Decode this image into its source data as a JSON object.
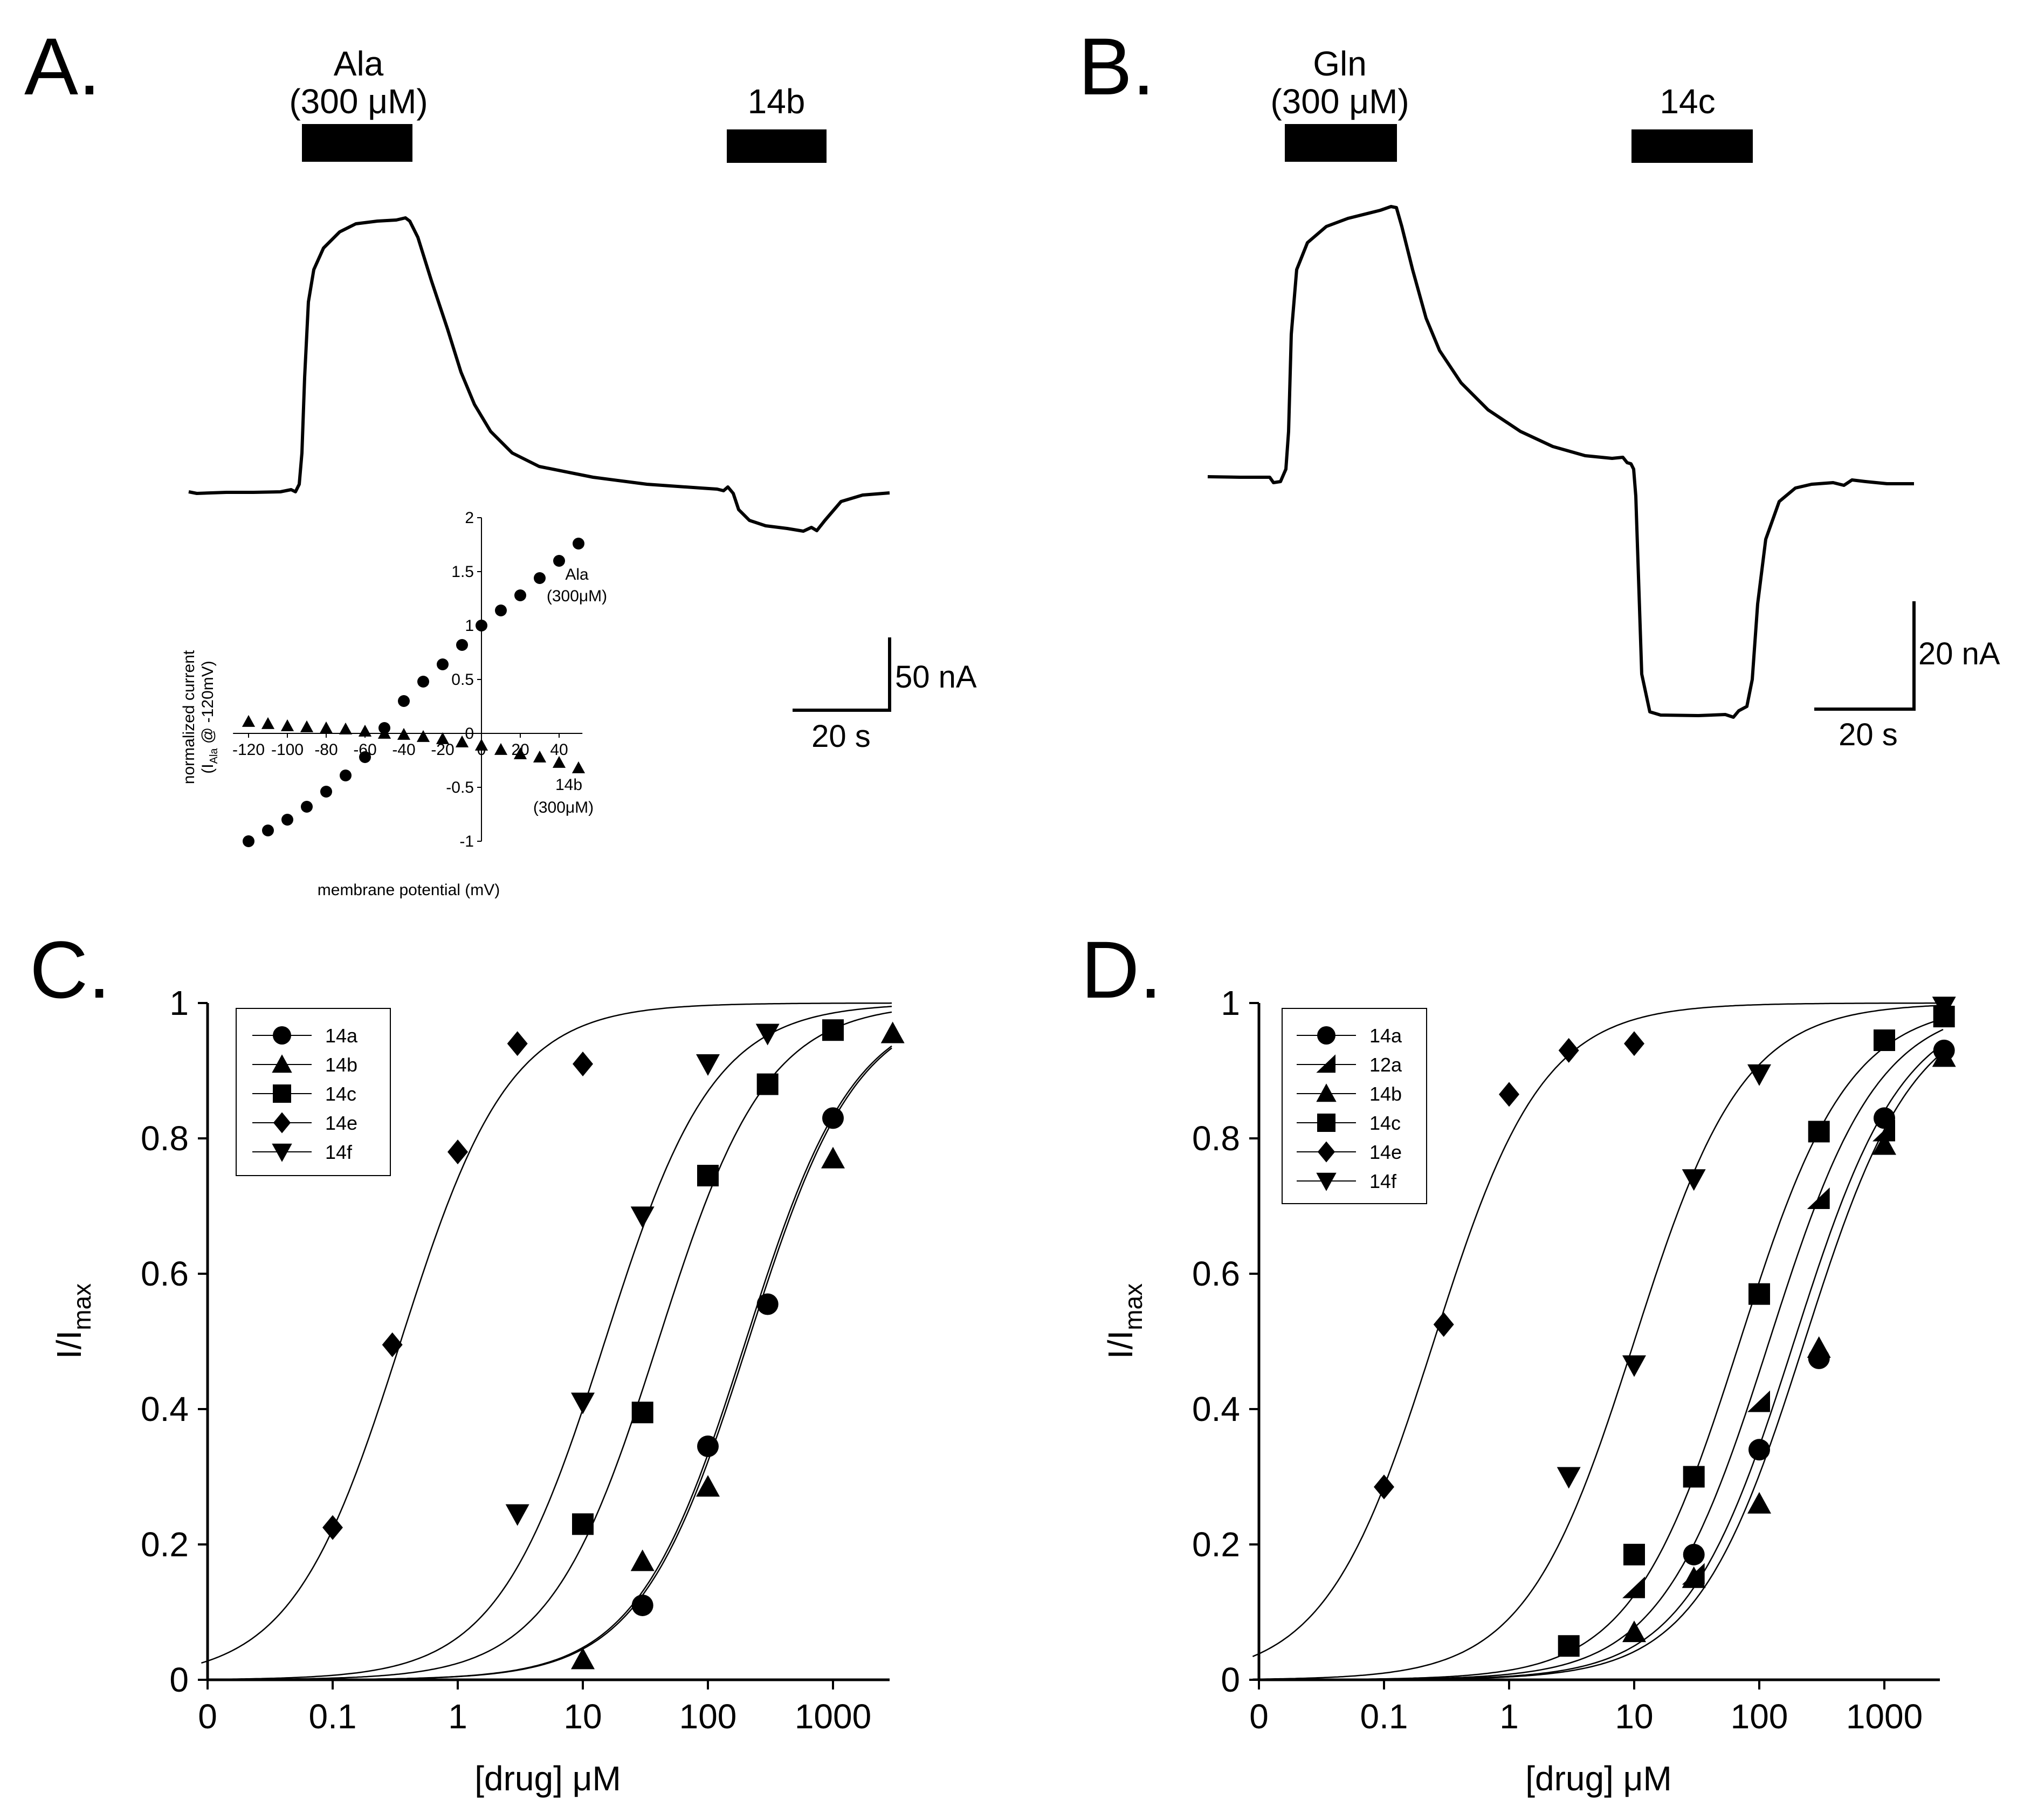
{
  "panels": {
    "A": {
      "letter": "A.",
      "bar1": {
        "line1": "Ala",
        "line2": "(300 μM)"
      },
      "bar2": {
        "line1": "14b"
      },
      "scale": {
        "current": "50 nA",
        "time": "20 s"
      }
    },
    "B": {
      "letter": "B.",
      "bar1": {
        "line1": "Gln",
        "line2": "(300 μM)"
      },
      "bar2": {
        "line1": "14c"
      },
      "scale": {
        "current": "20 nA",
        "time": "20 s"
      }
    },
    "C": {
      "letter": "C."
    },
    "D": {
      "letter": "D."
    }
  },
  "chart_data": [
    {
      "id": "inset",
      "type": "scatter",
      "xlabel": "membrane potential (mV)",
      "ylabel": "normalized current",
      "ylabel2": "(I",
      "ylabel_sub": "Ala",
      "ylabel_tail": " @ -120mV)",
      "xlim": [
        -130,
        55
      ],
      "ylim": [
        -1,
        2
      ],
      "x_ticks": [
        -120,
        -100,
        -80,
        -60,
        -40,
        -20,
        0,
        20,
        40
      ],
      "x_tick_labels": [
        "-120",
        "-100",
        "-80",
        "-60",
        "-40",
        "-20",
        "0",
        "20",
        "40"
      ],
      "y_ticks": [
        -1,
        -0.5,
        0,
        0.5,
        1,
        1.5,
        2
      ],
      "y_tick_labels": [
        "-1",
        "-0.5",
        "0",
        "0.5",
        "1",
        "1.5",
        "2"
      ],
      "series": [
        {
          "name": "Ala",
          "label1": "Ala",
          "label2": "(300μM)",
          "marker": "circle",
          "x": [
            -120,
            -110,
            -100,
            -90,
            -80,
            -70,
            -60,
            -50,
            -40,
            -30,
            -20,
            -10,
            0,
            10,
            20,
            30,
            40,
            50
          ],
          "y": [
            -1.0,
            -0.9,
            -0.8,
            -0.68,
            -0.54,
            -0.39,
            -0.22,
            0.05,
            0.3,
            0.48,
            0.64,
            0.82,
            1.0,
            1.14,
            1.28,
            1.44,
            1.6,
            1.76
          ]
        },
        {
          "name": "14b",
          "label1": "14b",
          "label2": "(300μM)",
          "marker": "triangle",
          "x": [
            -120,
            -110,
            -100,
            -90,
            -80,
            -70,
            -60,
            -50,
            -40,
            -30,
            -20,
            -10,
            0,
            10,
            20,
            30,
            40,
            50
          ],
          "y": [
            0.11,
            0.09,
            0.07,
            0.06,
            0.05,
            0.04,
            0.02,
            0.0,
            -0.01,
            -0.03,
            -0.05,
            -0.08,
            -0.11,
            -0.15,
            -0.19,
            -0.22,
            -0.27,
            -0.32
          ]
        }
      ]
    },
    {
      "id": "C",
      "type": "scatter",
      "xlabel": "[drug] μM",
      "ylabel": "I/I",
      "ylabel_sub": "max",
      "x_scale": "log",
      "x_tick_labels": [
        "0",
        "0.1",
        "1",
        "10",
        "100",
        "1000"
      ],
      "x_tick_values": [
        0.01,
        0.1,
        1,
        10,
        100,
        1000
      ],
      "y_ticks": [
        0,
        0.2,
        0.4,
        0.6,
        0.8,
        1
      ],
      "y_tick_labels": [
        "0",
        "0.2",
        "0.4",
        "0.6",
        "0.8",
        "1"
      ],
      "ylim": [
        0,
        1
      ],
      "series": [
        {
          "name": "14a",
          "marker": "circle",
          "ec50": 200,
          "x": [
            30,
            100,
            300,
            1000
          ],
          "y": [
            0.11,
            0.345,
            0.555,
            0.83
          ]
        },
        {
          "name": "14b",
          "marker": "triangle",
          "ec50": 210,
          "x": [
            10,
            30,
            100,
            1000,
            3000
          ],
          "y": [
            0.03,
            0.175,
            0.285,
            0.77,
            0.955
          ]
        },
        {
          "name": "14c",
          "marker": "square",
          "ec50": 40,
          "x": [
            10,
            30,
            100,
            300,
            1000
          ],
          "y": [
            0.23,
            0.395,
            0.745,
            0.88,
            0.96
          ]
        },
        {
          "name": "14e",
          "marker": "diamond",
          "ec50": 0.35,
          "x": [
            0.1,
            0.3,
            1,
            3,
            10
          ],
          "y": [
            0.225,
            0.495,
            0.78,
            0.94,
            0.91
          ]
        },
        {
          "name": "14f",
          "marker": "invtriangle",
          "ec50": 15,
          "x": [
            3,
            10,
            30,
            100,
            300
          ],
          "y": [
            0.245,
            0.41,
            0.685,
            0.91,
            0.955
          ]
        }
      ]
    },
    {
      "id": "D",
      "type": "scatter",
      "xlabel": "[drug] μM",
      "ylabel": "I/I",
      "ylabel_sub": "max",
      "x_scale": "log",
      "x_tick_labels": [
        "0",
        "0.1",
        "1",
        "10",
        "100",
        "1000"
      ],
      "x_tick_values": [
        0.01,
        0.1,
        1,
        10,
        100,
        1000
      ],
      "y_ticks": [
        0,
        0.2,
        0.4,
        0.6,
        0.8,
        1
      ],
      "y_tick_labels": [
        "0",
        "0.2",
        "0.4",
        "0.6",
        "0.8",
        "1"
      ],
      "ylim": [
        0,
        1
      ],
      "series": [
        {
          "name": "14a",
          "marker": "circle",
          "ec50": 190,
          "x": [
            30,
            100,
            300,
            1000,
            3000
          ],
          "y": [
            0.185,
            0.34,
            0.475,
            0.83,
            0.93
          ]
        },
        {
          "name": "12a",
          "marker": "halftriangle",
          "ec50": 120,
          "x": [
            10,
            30,
            100,
            300,
            1000
          ],
          "y": [
            0.135,
            0.155,
            0.41,
            0.71,
            0.81
          ]
        },
        {
          "name": "14b",
          "marker": "triangle",
          "ec50": 230,
          "x": [
            10,
            30,
            100,
            300,
            1000,
            3000
          ],
          "y": [
            0.07,
            0.15,
            0.26,
            0.49,
            0.79,
            0.92
          ]
        },
        {
          "name": "14c",
          "marker": "square",
          "ec50": 70,
          "x": [
            3,
            10,
            30,
            100,
            300,
            1000,
            3000
          ],
          "y": [
            0.05,
            0.185,
            0.3,
            0.57,
            0.81,
            0.945,
            0.98
          ]
        },
        {
          "name": "14e",
          "marker": "diamond",
          "ec50": 0.25,
          "x": [
            0.1,
            0.3,
            1,
            3,
            10
          ],
          "y": [
            0.285,
            0.525,
            0.865,
            0.93,
            0.94
          ]
        },
        {
          "name": "14f",
          "marker": "invtriangle",
          "ec50": 10,
          "x": [
            3,
            10,
            30,
            100,
            3000
          ],
          "y": [
            0.3,
            0.465,
            0.74,
            0.895,
            0.995
          ]
        }
      ]
    }
  ],
  "traces": {
    "A": {
      "x_unit": "s",
      "y_unit": "nA"
    },
    "B": {
      "x_unit": "s",
      "y_unit": "nA"
    }
  }
}
